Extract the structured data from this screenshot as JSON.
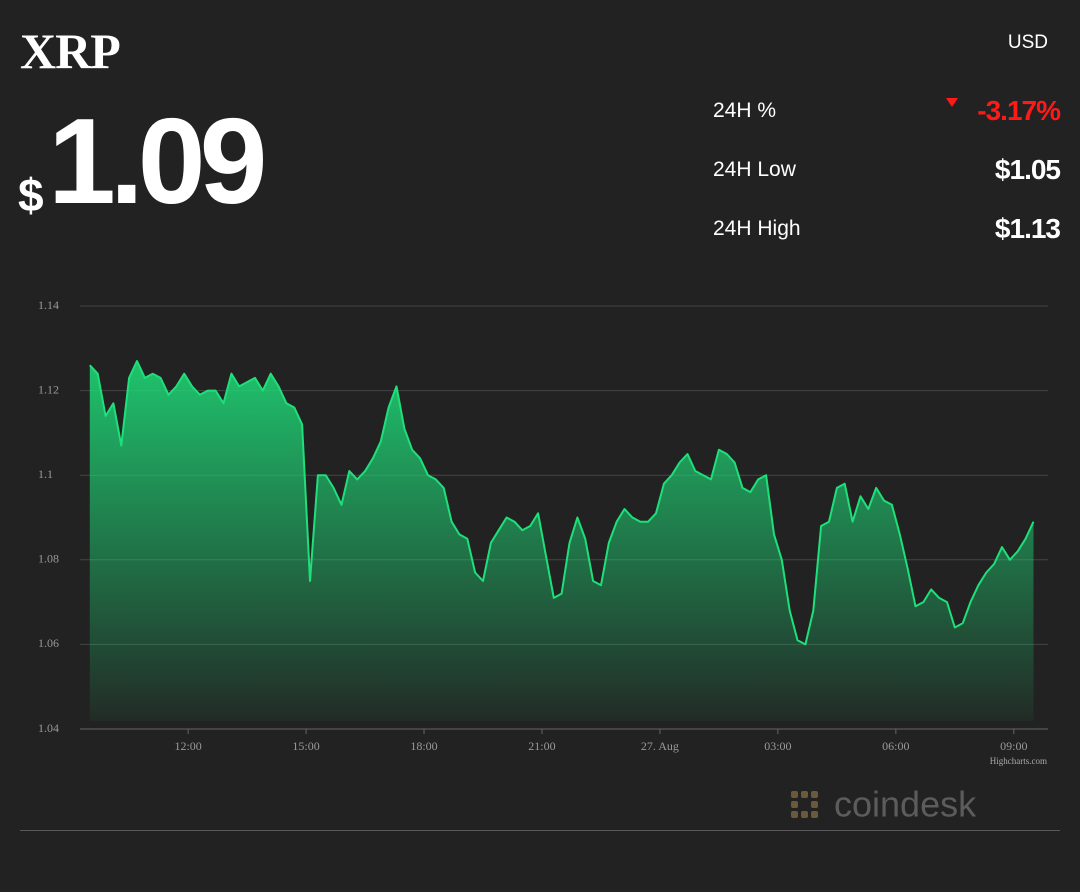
{
  "header": {
    "symbol": "XRP",
    "currency": "USD",
    "price_symbol": "$",
    "price": "1.09"
  },
  "stats": [
    {
      "label": "24H %",
      "value": "-3.17%"
    },
    {
      "label": "24H Low",
      "value": "$1.05"
    },
    {
      "label": "24H High",
      "value": "$1.13"
    }
  ],
  "credit": "Highcharts.com",
  "logo": "coindesk",
  "chart_data": {
    "type": "area",
    "color": "#1ee07a",
    "grid": true,
    "xlim": [
      9.25,
      33.87
    ],
    "ylim": [
      1.04,
      1.14
    ],
    "yticks": [
      1.04,
      1.06,
      1.08,
      1.1,
      1.12,
      1.14
    ],
    "xticks": [
      {
        "value": 12,
        "label": "12:00"
      },
      {
        "value": 15,
        "label": "15:00"
      },
      {
        "value": 18,
        "label": "18:00"
      },
      {
        "value": 21,
        "label": "21:00"
      },
      {
        "value": 24,
        "label": "27. Aug"
      },
      {
        "value": 27,
        "label": "03:00"
      },
      {
        "value": 30,
        "label": "06:00"
      },
      {
        "value": 33,
        "label": "09:00"
      }
    ],
    "x": [
      9.5,
      9.7,
      9.9,
      10.1,
      10.3,
      10.5,
      10.7,
      10.9,
      11.1,
      11.3,
      11.5,
      11.7,
      11.9,
      12.1,
      12.3,
      12.5,
      12.7,
      12.9,
      13.1,
      13.3,
      13.5,
      13.7,
      13.9,
      14.1,
      14.3,
      14.5,
      14.7,
      14.9,
      15.1,
      15.3,
      15.5,
      15.7,
      15.9,
      16.1,
      16.3,
      16.5,
      16.7,
      16.9,
      17.1,
      17.3,
      17.5,
      17.7,
      17.9,
      18.1,
      18.3,
      18.5,
      18.7,
      18.9,
      19.1,
      19.3,
      19.5,
      19.7,
      19.9,
      20.1,
      20.3,
      20.5,
      20.7,
      20.9,
      21.1,
      21.3,
      21.5,
      21.7,
      21.9,
      22.1,
      22.3,
      22.5,
      22.7,
      22.9,
      23.1,
      23.3,
      23.5,
      23.7,
      23.9,
      24.1,
      24.3,
      24.5,
      24.7,
      24.9,
      25.1,
      25.3,
      25.5,
      25.7,
      25.9,
      26.1,
      26.3,
      26.5,
      26.7,
      26.9,
      27.1,
      27.3,
      27.5,
      27.7,
      27.9,
      28.1,
      28.3,
      28.5,
      28.7,
      28.9,
      29.1,
      29.3,
      29.5,
      29.7,
      29.9,
      30.1,
      30.3,
      30.5,
      30.7,
      30.9,
      31.1,
      31.3,
      31.5,
      31.7,
      31.9,
      32.1,
      32.3,
      32.5,
      32.7,
      32.9,
      33.1,
      33.3,
      33.5
    ],
    "values": [
      1.126,
      1.124,
      1.114,
      1.117,
      1.107,
      1.123,
      1.127,
      1.123,
      1.124,
      1.123,
      1.119,
      1.121,
      1.124,
      1.121,
      1.119,
      1.12,
      1.12,
      1.117,
      1.124,
      1.121,
      1.122,
      1.123,
      1.12,
      1.124,
      1.121,
      1.117,
      1.116,
      1.112,
      1.075,
      1.1,
      1.1,
      1.097,
      1.093,
      1.101,
      1.099,
      1.101,
      1.104,
      1.108,
      1.116,
      1.121,
      1.111,
      1.106,
      1.104,
      1.1,
      1.099,
      1.097,
      1.089,
      1.086,
      1.085,
      1.077,
      1.075,
      1.084,
      1.087,
      1.09,
      1.089,
      1.087,
      1.088,
      1.091,
      1.081,
      1.071,
      1.072,
      1.084,
      1.09,
      1.085,
      1.075,
      1.074,
      1.084,
      1.089,
      1.092,
      1.09,
      1.089,
      1.089,
      1.091,
      1.098,
      1.1,
      1.103,
      1.105,
      1.101,
      1.1,
      1.099,
      1.106,
      1.105,
      1.103,
      1.097,
      1.096,
      1.099,
      1.1,
      1.086,
      1.08,
      1.068,
      1.061,
      1.06,
      1.068,
      1.088,
      1.089,
      1.097,
      1.098,
      1.089,
      1.095,
      1.092,
      1.097,
      1.094,
      1.093,
      1.086,
      1.078,
      1.069,
      1.07,
      1.073,
      1.071,
      1.07,
      1.064,
      1.065,
      1.07,
      1.074,
      1.077,
      1.079,
      1.083,
      1.08,
      1.082,
      1.085,
      1.089
    ]
  }
}
